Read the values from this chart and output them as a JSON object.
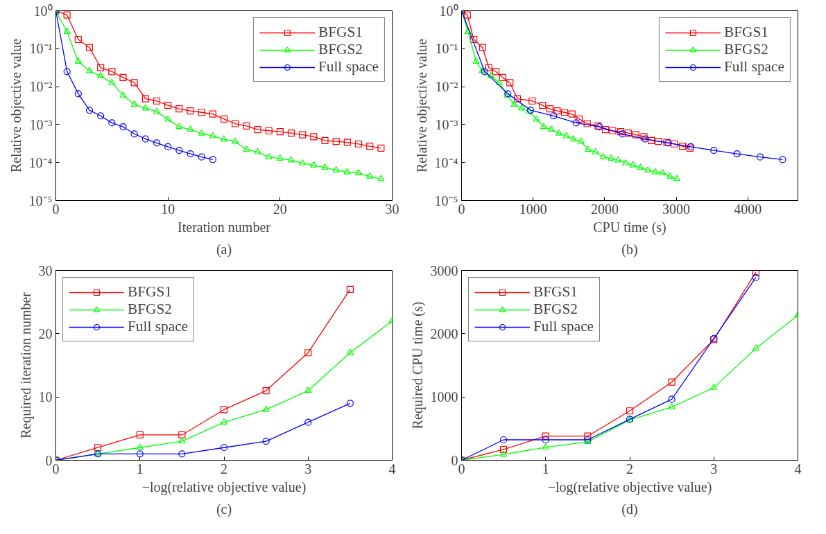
{
  "chart_data": [
    {
      "type": "line",
      "xlabel": "Iteration number",
      "ylabel": "Relative objective value",
      "annotations": [
        "(a)"
      ],
      "log": "y",
      "xlim": [
        0,
        30
      ],
      "xticks": [
        0,
        10,
        20,
        30
      ],
      "ylim": [
        1e-05,
        1
      ],
      "yticks": [
        {
          "value": 1e-05,
          "label": "10⁻⁵"
        },
        {
          "value": 0.0001,
          "label": "10⁻⁴"
        },
        {
          "value": 0.001,
          "label": "10⁻³"
        },
        {
          "value": 0.01,
          "label": "10⁻²"
        },
        {
          "value": 0.1,
          "label": "10⁻¹"
        },
        {
          "value": 1,
          "label": "10⁰"
        }
      ],
      "grid": false,
      "legend": "top right",
      "line_style": "solid",
      "series": [
        {
          "name": "BFGS1",
          "color": "#ff0000",
          "marker": "square",
          "x": [
            0,
            1,
            2,
            3,
            4,
            5,
            6,
            7,
            8,
            9,
            10,
            11,
            12,
            13,
            14,
            15,
            16,
            17,
            18,
            19,
            20,
            21,
            22,
            23,
            24,
            25,
            26,
            27,
            28,
            29
          ],
          "values": [
            1,
            0.77,
            0.175,
            0.107,
            0.0316,
            0.025,
            0.0174,
            0.0127,
            0.0048,
            0.0042,
            0.0032,
            0.0026,
            0.0023,
            0.0021,
            0.0019,
            0.0014,
            0.00106,
            0.00092,
            0.00074,
            0.00069,
            0.00065,
            0.0006,
            0.00054,
            0.00048,
            0.00038,
            0.00036,
            0.00034,
            0.00031,
            0.00027,
            0.00024
          ]
        },
        {
          "name": "BFGS2",
          "color": "#00ff00",
          "marker": "triangle",
          "x": [
            0,
            1,
            2,
            3,
            4,
            5,
            6,
            7,
            8,
            9,
            10,
            11,
            12,
            13,
            14,
            15,
            16,
            17,
            18,
            19,
            20,
            21,
            22,
            23,
            24,
            25,
            26,
            27,
            28,
            29
          ],
          "values": [
            1,
            0.28,
            0.046,
            0.026,
            0.019,
            0.0127,
            0.0059,
            0.0034,
            0.0027,
            0.0022,
            0.00137,
            0.00088,
            0.00074,
            0.00059,
            0.0005,
            0.00041,
            0.00036,
            0.00022,
            0.00019,
            0.00014,
            0.000128,
            0.000115,
            9.6e-05,
            8.5e-05,
            7.4e-05,
            6.3e-05,
            5.6e-05,
            5.3e-05,
            4.3e-05,
            3.7e-05
          ]
        },
        {
          "name": "Full space",
          "color": "#0000ff",
          "marker": "circle",
          "x": [
            0,
            1,
            2,
            3,
            4,
            5,
            6,
            7,
            8,
            9,
            10,
            11,
            12,
            13,
            14
          ],
          "values": [
            1,
            0.025,
            0.0065,
            0.0024,
            0.0017,
            0.00111,
            0.00087,
            0.00057,
            0.00042,
            0.00033,
            0.00026,
            0.00021,
            0.00017,
            0.00014,
            0.00012
          ]
        }
      ]
    },
    {
      "type": "line",
      "xlabel": "CPU time (s)",
      "ylabel": "Relative objective value",
      "annotations": [
        "(b)"
      ],
      "log": "y",
      "xlim": [
        0,
        4700
      ],
      "xticks": [
        0,
        1000,
        2000,
        3000,
        4000
      ],
      "ylim": [
        1e-05,
        1
      ],
      "yticks": [
        {
          "value": 1e-05,
          "label": "10⁻⁵"
        },
        {
          "value": 0.0001,
          "label": "10⁻⁴"
        },
        {
          "value": 0.001,
          "label": "10⁻³"
        },
        {
          "value": 0.01,
          "label": "10⁻²"
        },
        {
          "value": 0.1,
          "label": "10⁻¹"
        },
        {
          "value": 1,
          "label": "10⁰"
        }
      ],
      "grid": false,
      "legend": "top right",
      "line_style": "solid",
      "series": [
        {
          "name": "BFGS1",
          "color": "#ff0000",
          "marker": "square",
          "x": [
            0,
            81,
            171,
            294,
            381,
            479,
            576,
            676,
            780,
            987,
            1132,
            1235,
            1336,
            1440,
            1543,
            1643,
            1756,
            1908,
            2011,
            2112,
            2225,
            2329,
            2435,
            2549,
            2652,
            2749,
            2869,
            2972,
            3088,
            3192
          ],
          "values": [
            1,
            0.77,
            0.175,
            0.107,
            0.0316,
            0.025,
            0.0174,
            0.0127,
            0.0048,
            0.0042,
            0.0032,
            0.0026,
            0.0023,
            0.0021,
            0.0019,
            0.0014,
            0.00106,
            0.00092,
            0.00074,
            0.00069,
            0.00065,
            0.0006,
            0.00054,
            0.00048,
            0.00038,
            0.00036,
            0.00034,
            0.00031,
            0.00027,
            0.00024
          ]
        },
        {
          "name": "BFGS2",
          "color": "#00ff00",
          "marker": "triangle",
          "x": [
            0,
            91,
            204,
            291,
            411,
            527,
            637,
            738,
            841,
            944,
            1045,
            1148,
            1255,
            1361,
            1465,
            1565,
            1669,
            1769,
            1873,
            1980,
            2089,
            2190,
            2293,
            2397,
            2500,
            2604,
            2707,
            2810,
            2914,
            3008
          ],
          "values": [
            1,
            0.28,
            0.046,
            0.026,
            0.019,
            0.0127,
            0.0059,
            0.0034,
            0.0027,
            0.0022,
            0.00137,
            0.00088,
            0.00074,
            0.00059,
            0.0005,
            0.00041,
            0.00036,
            0.00022,
            0.00019,
            0.00014,
            0.000128,
            0.000115,
            9.6e-05,
            8.5e-05,
            7.4e-05,
            6.3e-05,
            5.6e-05,
            5.3e-05,
            4.3e-05,
            3.7e-05
          ]
        },
        {
          "name": "Full space",
          "color": "#0000ff",
          "marker": "circle",
          "x": [
            0,
            323,
            647,
            964,
            1287,
            1601,
            1924,
            2248,
            2565,
            2888,
            3202,
            3525,
            3849,
            4172,
            4486
          ],
          "values": [
            1,
            0.025,
            0.0065,
            0.0024,
            0.0017,
            0.00111,
            0.00087,
            0.00057,
            0.00042,
            0.00033,
            0.00026,
            0.00021,
            0.00017,
            0.00014,
            0.00012
          ]
        }
      ]
    },
    {
      "type": "line",
      "xlabel": "−log(relative objective value)",
      "ylabel": "Required iteration number",
      "annotations": [
        "(c)"
      ],
      "xlim": [
        0,
        4
      ],
      "xticks": [
        0,
        1,
        2,
        3,
        4
      ],
      "ylim": [
        0,
        30
      ],
      "yticks": [
        0,
        10,
        20,
        30
      ],
      "grid": false,
      "legend": "top left",
      "line_style": "solid",
      "series": [
        {
          "name": "BFGS1",
          "color": "#ff0000",
          "marker": "square",
          "x": [
            0,
            0.5,
            1,
            1.5,
            2,
            2.5,
            3,
            3.5
          ],
          "values": [
            0,
            2,
            4,
            4,
            8,
            11,
            17,
            27
          ]
        },
        {
          "name": "BFGS2",
          "color": "#00ff00",
          "marker": "triangle",
          "x": [
            0,
            0.5,
            1,
            1.5,
            2,
            2.5,
            3,
            3.5,
            4
          ],
          "values": [
            0,
            1,
            2,
            3,
            6,
            8,
            11,
            17,
            22
          ]
        },
        {
          "name": "Full space",
          "color": "#0000ff",
          "marker": "circle",
          "x": [
            0,
            0.5,
            1,
            1.5,
            2,
            2.5,
            3,
            3.5
          ],
          "values": [
            0,
            1,
            1,
            1,
            2,
            3,
            6,
            9
          ]
        }
      ]
    },
    {
      "type": "line",
      "xlabel": "−log(relative objective value)",
      "ylabel": "Required CPU time (s)",
      "annotations": [
        "(d)"
      ],
      "xlim": [
        0,
        4
      ],
      "xticks": [
        0,
        1,
        2,
        3,
        4
      ],
      "ylim": [
        0,
        3000
      ],
      "yticks": [
        0,
        1000,
        2000,
        3000
      ],
      "grid": false,
      "legend": "top left",
      "line_style": "solid",
      "series": [
        {
          "name": "BFGS1",
          "color": "#ff0000",
          "marker": "square",
          "x": [
            0,
            0.5,
            1,
            1.5,
            2,
            2.5,
            3,
            3.5
          ],
          "values": [
            0,
            171,
            381,
            381,
            780,
            1235,
            1908,
            2972
          ]
        },
        {
          "name": "BFGS2",
          "color": "#00ff00",
          "marker": "triangle",
          "x": [
            0,
            0.5,
            1,
            1.5,
            2,
            2.5,
            3,
            3.5,
            4
          ],
          "values": [
            0,
            91,
            204,
            291,
            637,
            841,
            1148,
            1769,
            2293
          ]
        },
        {
          "name": "Full space",
          "color": "#0000ff",
          "marker": "circle",
          "x": [
            0,
            0.5,
            1,
            1.5,
            2,
            2.5,
            3,
            3.5
          ],
          "values": [
            0,
            323,
            323,
            323,
            647,
            964,
            1924,
            2888
          ]
        }
      ]
    }
  ]
}
